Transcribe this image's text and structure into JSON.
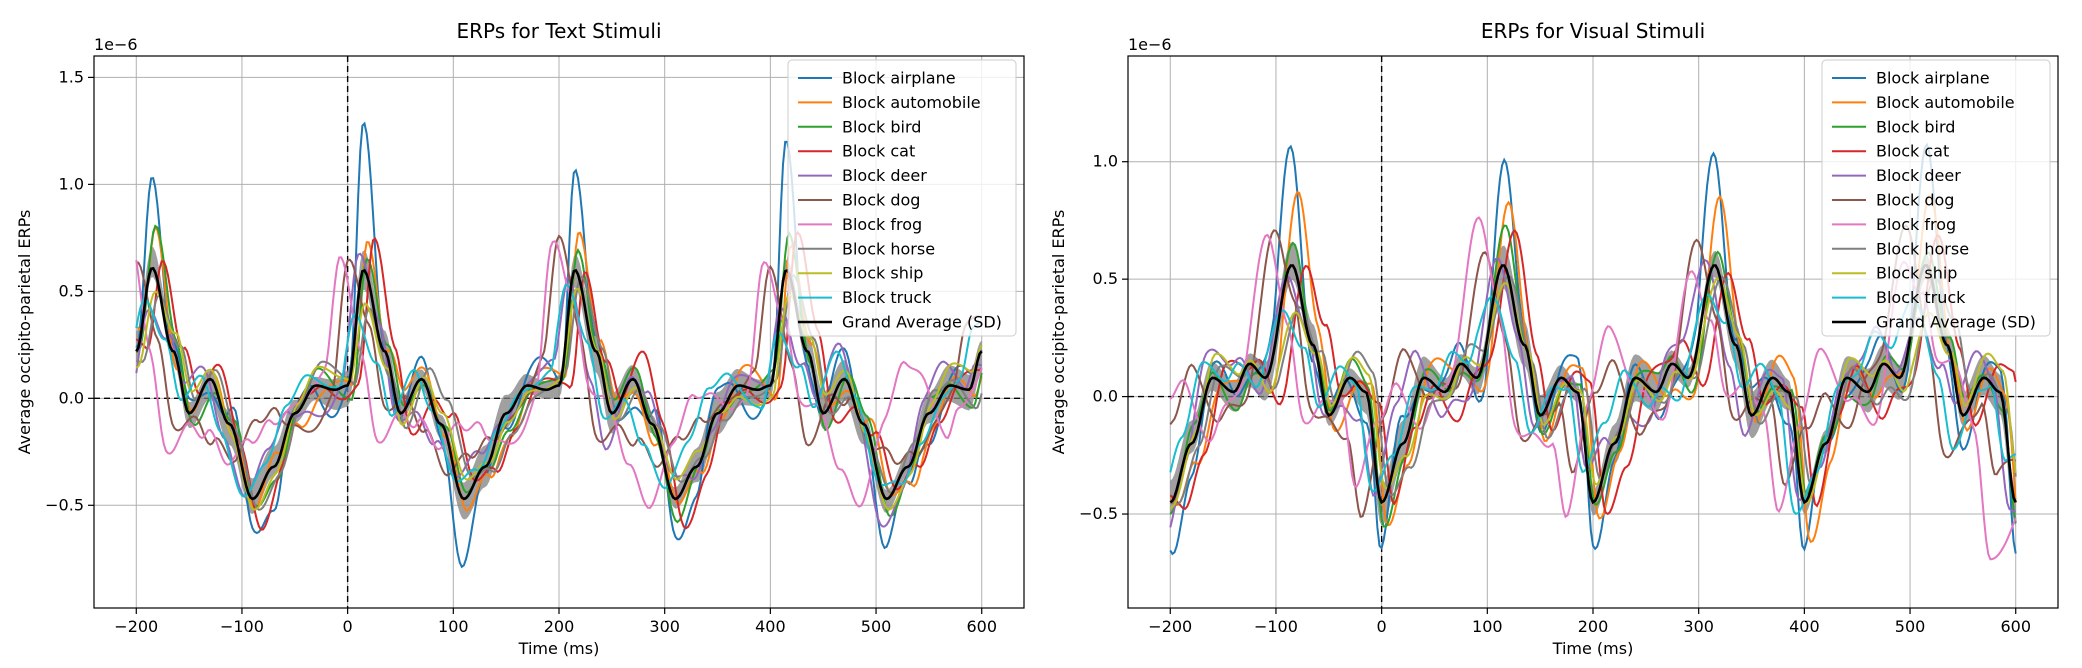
{
  "chart_data": [
    {
      "type": "line",
      "title": "ERPs for Text Stimuli",
      "xlabel": "Time (ms)",
      "ylabel": "Average occipito-parietal ERPs",
      "offset_text": "1e−6",
      "xlim": [
        -240,
        640
      ],
      "ylim": [
        -0.98,
        1.6
      ],
      "xticks": [
        -200,
        -100,
        0,
        100,
        200,
        300,
        400,
        500,
        600
      ],
      "xtick_labels": [
        "−200",
        "−100",
        "0",
        "100",
        "200",
        "300",
        "400",
        "500",
        "600"
      ],
      "yticks": [
        -0.5,
        0.0,
        0.5,
        1.0,
        1.5
      ],
      "ytick_labels": [
        "−0.5",
        "0.0",
        "0.5",
        "1.0",
        "1.5"
      ],
      "grid": true,
      "legend_position": "top-right",
      "reference_lines": {
        "y": 0,
        "x": 0,
        "style": "dashed"
      },
      "grand_average": [
        {
          "x": -200,
          "y": 0.22
        },
        {
          "x": -185,
          "y": 0.61
        },
        {
          "x": -165,
          "y": 0.22
        },
        {
          "x": -150,
          "y": -0.07
        },
        {
          "x": -130,
          "y": 0.09
        },
        {
          "x": -112,
          "y": -0.12
        },
        {
          "x": -90,
          "y": -0.47
        },
        {
          "x": -70,
          "y": -0.32
        },
        {
          "x": -50,
          "y": -0.07
        },
        {
          "x": -30,
          "y": 0.06
        },
        {
          "x": -12,
          "y": 0.04
        },
        {
          "x": 0,
          "y": 0.06
        },
        {
          "x": 15,
          "y": 0.6
        },
        {
          "x": 35,
          "y": 0.22
        },
        {
          "x": 50,
          "y": -0.07
        },
        {
          "x": 70,
          "y": 0.09
        },
        {
          "x": 88,
          "y": -0.12
        },
        {
          "x": 110,
          "y": -0.47
        },
        {
          "x": 130,
          "y": -0.32
        },
        {
          "x": 150,
          "y": -0.07
        },
        {
          "x": 170,
          "y": 0.06
        },
        {
          "x": 188,
          "y": 0.04
        },
        {
          "x": 200,
          "y": 0.06
        },
        {
          "x": 215,
          "y": 0.6
        },
        {
          "x": 235,
          "y": 0.22
        },
        {
          "x": 250,
          "y": -0.07
        },
        {
          "x": 270,
          "y": 0.09
        },
        {
          "x": 288,
          "y": -0.12
        },
        {
          "x": 310,
          "y": -0.47
        },
        {
          "x": 330,
          "y": -0.32
        },
        {
          "x": 350,
          "y": -0.07
        },
        {
          "x": 370,
          "y": 0.06
        },
        {
          "x": 388,
          "y": 0.04
        },
        {
          "x": 400,
          "y": 0.06
        },
        {
          "x": 415,
          "y": 0.6
        },
        {
          "x": 435,
          "y": 0.22
        },
        {
          "x": 450,
          "y": -0.07
        },
        {
          "x": 470,
          "y": 0.09
        },
        {
          "x": 488,
          "y": -0.12
        },
        {
          "x": 510,
          "y": -0.47
        },
        {
          "x": 530,
          "y": -0.32
        },
        {
          "x": 550,
          "y": -0.07
        },
        {
          "x": 570,
          "y": 0.06
        },
        {
          "x": 588,
          "y": 0.04
        },
        {
          "x": 600,
          "y": 0.22
        }
      ],
      "sd": 0.1,
      "series": [
        {
          "name": "Block airplane",
          "color": "#1f77b4",
          "gain": 2.4,
          "shift": 0,
          "wiggle": 0.1
        },
        {
          "name": "Block automobile",
          "color": "#ff7f0e",
          "gain": 1.55,
          "shift": 4,
          "wiggle": 0.08
        },
        {
          "name": "Block bird",
          "color": "#2ca02c",
          "gain": 1.3,
          "shift": 3,
          "wiggle": 0.06
        },
        {
          "name": "Block cat",
          "color": "#d62728",
          "gain": 1.2,
          "shift": 10,
          "wiggle": 0.09
        },
        {
          "name": "Block deer",
          "color": "#9467bd",
          "gain": 0.8,
          "shift": -5,
          "wiggle": 0.12
        },
        {
          "name": "Block dog",
          "color": "#8c564b",
          "gain": 0.85,
          "shift": -15,
          "wiggle": 0.15
        },
        {
          "name": "Block frog",
          "color": "#e377c2",
          "gain": 0.9,
          "shift": -22,
          "wiggle": 0.18
        },
        {
          "name": "Block horse",
          "color": "#7f7f7f",
          "gain": 0.75,
          "shift": 6,
          "wiggle": 0.08
        },
        {
          "name": "Block ship",
          "color": "#bcbd22",
          "gain": 0.7,
          "shift": 2,
          "wiggle": 0.07
        },
        {
          "name": "Block truck",
          "color": "#17becf",
          "gain": 0.6,
          "shift": -8,
          "wiggle": 0.1
        },
        {
          "name": "Grand Average (SD)",
          "color": "#000000",
          "is_average": true
        }
      ]
    },
    {
      "type": "line",
      "title": "ERPs for Visual Stimuli",
      "xlabel": "Time (ms)",
      "ylabel": "Average occipito-parietal ERPs",
      "offset_text": "1e−6",
      "xlim": [
        -240,
        640
      ],
      "ylim": [
        -0.9,
        1.45
      ],
      "xticks": [
        -200,
        -100,
        0,
        100,
        200,
        300,
        400,
        500,
        600
      ],
      "xtick_labels": [
        "−200",
        "−100",
        "0",
        "100",
        "200",
        "300",
        "400",
        "500",
        "600"
      ],
      "yticks": [
        -0.5,
        0.0,
        0.5,
        1.0
      ],
      "ytick_labels": [
        "−0.5",
        "0.0",
        "0.5",
        "1.0"
      ],
      "grid": true,
      "legend_position": "top-right",
      "reference_lines": {
        "y": 0,
        "x": 0,
        "style": "dashed"
      },
      "grand_average": [
        {
          "x": -200,
          "y": -0.45
        },
        {
          "x": -180,
          "y": -0.2
        },
        {
          "x": -160,
          "y": 0.08
        },
        {
          "x": -140,
          "y": 0.02
        },
        {
          "x": -125,
          "y": 0.14
        },
        {
          "x": -110,
          "y": 0.08
        },
        {
          "x": -85,
          "y": 0.56
        },
        {
          "x": -65,
          "y": 0.22
        },
        {
          "x": -50,
          "y": -0.08
        },
        {
          "x": -30,
          "y": 0.08
        },
        {
          "x": -15,
          "y": 0.02
        },
        {
          "x": 0,
          "y": -0.45
        },
        {
          "x": 20,
          "y": -0.2
        },
        {
          "x": 40,
          "y": 0.08
        },
        {
          "x": 60,
          "y": 0.02
        },
        {
          "x": 75,
          "y": 0.14
        },
        {
          "x": 90,
          "y": 0.08
        },
        {
          "x": 115,
          "y": 0.56
        },
        {
          "x": 135,
          "y": 0.22
        },
        {
          "x": 150,
          "y": -0.08
        },
        {
          "x": 170,
          "y": 0.08
        },
        {
          "x": 185,
          "y": 0.02
        },
        {
          "x": 200,
          "y": -0.45
        },
        {
          "x": 220,
          "y": -0.2
        },
        {
          "x": 240,
          "y": 0.08
        },
        {
          "x": 260,
          "y": 0.02
        },
        {
          "x": 275,
          "y": 0.14
        },
        {
          "x": 290,
          "y": 0.08
        },
        {
          "x": 315,
          "y": 0.56
        },
        {
          "x": 335,
          "y": 0.22
        },
        {
          "x": 350,
          "y": -0.08
        },
        {
          "x": 370,
          "y": 0.08
        },
        {
          "x": 385,
          "y": 0.02
        },
        {
          "x": 400,
          "y": -0.45
        },
        {
          "x": 420,
          "y": -0.2
        },
        {
          "x": 440,
          "y": 0.08
        },
        {
          "x": 460,
          "y": 0.02
        },
        {
          "x": 475,
          "y": 0.14
        },
        {
          "x": 490,
          "y": 0.08
        },
        {
          "x": 515,
          "y": 0.56
        },
        {
          "x": 535,
          "y": 0.22
        },
        {
          "x": 550,
          "y": -0.08
        },
        {
          "x": 570,
          "y": 0.08
        },
        {
          "x": 585,
          "y": 0.02
        },
        {
          "x": 600,
          "y": -0.45
        }
      ],
      "sd": 0.1,
      "series": [
        {
          "name": "Block airplane",
          "color": "#1f77b4",
          "gain": 2.3,
          "shift": 0,
          "wiggle": 0.1
        },
        {
          "name": "Block automobile",
          "color": "#ff7f0e",
          "gain": 1.6,
          "shift": 5,
          "wiggle": 0.08
        },
        {
          "name": "Block bird",
          "color": "#2ca02c",
          "gain": 1.25,
          "shift": 2,
          "wiggle": 0.06
        },
        {
          "name": "Block cat",
          "color": "#d62728",
          "gain": 1.15,
          "shift": 12,
          "wiggle": 0.09
        },
        {
          "name": "Block deer",
          "color": "#9467bd",
          "gain": 0.85,
          "shift": -6,
          "wiggle": 0.12
        },
        {
          "name": "Block dog",
          "color": "#8c564b",
          "gain": 0.9,
          "shift": -18,
          "wiggle": 0.15
        },
        {
          "name": "Block frog",
          "color": "#e377c2",
          "gain": 0.95,
          "shift": -24,
          "wiggle": 0.17
        },
        {
          "name": "Block horse",
          "color": "#7f7f7f",
          "gain": 0.75,
          "shift": 7,
          "wiggle": 0.08
        },
        {
          "name": "Block ship",
          "color": "#bcbd22",
          "gain": 0.7,
          "shift": 3,
          "wiggle": 0.07
        },
        {
          "name": "Block truck",
          "color": "#17becf",
          "gain": 0.6,
          "shift": -9,
          "wiggle": 0.1
        },
        {
          "name": "Grand Average (SD)",
          "color": "#000000",
          "is_average": true
        }
      ]
    }
  ]
}
